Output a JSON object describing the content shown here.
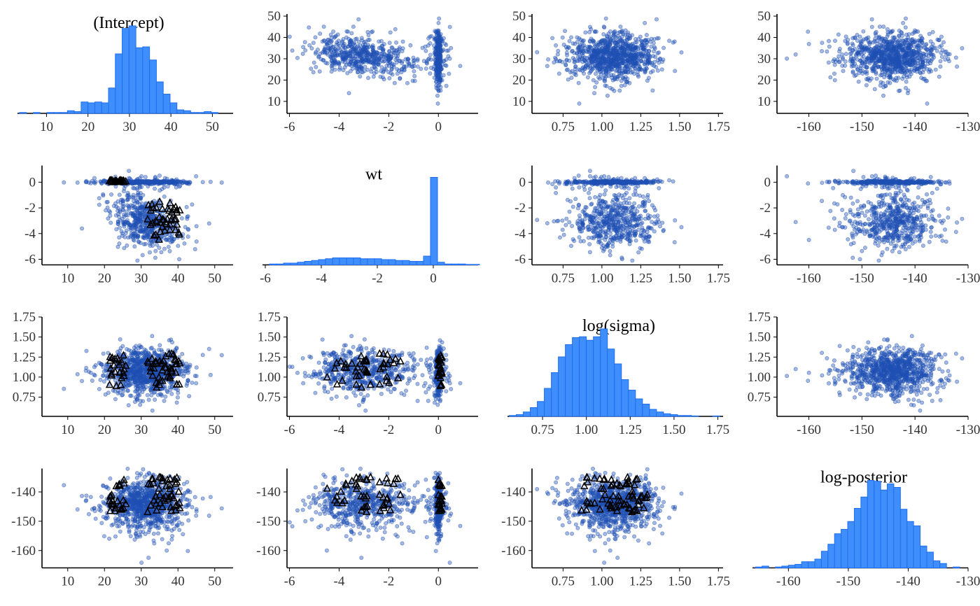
{
  "chart_data": {
    "type": "pairs",
    "variables": [
      "(Intercept)",
      "wt",
      "log(sigma)",
      "log-posterior"
    ],
    "colors": {
      "histogram": "#3f8efc",
      "histogram_edge": "#1f6ff0",
      "points": "#1f4fb4",
      "divergent": "#000000"
    },
    "ranges": {
      "(Intercept)": {
        "x": [
          3,
          55
        ],
        "y": [
          7,
          51
        ],
        "ticks": [
          10,
          20,
          30,
          40,
          50
        ]
      },
      "wt": {
        "x": [
          -6.1,
          1.6
        ],
        "y": [
          -6,
          1.3
        ],
        "ticks": [
          -6,
          -4,
          -2,
          0
        ]
      },
      "log(sigma)": {
        "x": [
          0.55,
          1.78
        ],
        "y": [
          0.58,
          1.75
        ],
        "ticks": [
          "0.75",
          "1.00",
          "1.25",
          "1.50",
          "1.75"
        ]
      },
      "log-posterior": {
        "x": [
          -166,
          -130
        ],
        "y": [
          -164,
          -132
        ],
        "ticks": [
          -160,
          -150,
          -140,
          -130
        ]
      }
    },
    "histograms": [
      {
        "variable": "(Intercept)",
        "bin_start": 3.5,
        "bin_width": 1.65,
        "relative_heights": [
          0.01,
          0,
          0.01,
          0,
          0.01,
          0.01,
          0.01,
          0.03,
          0.02,
          0.13,
          0.12,
          0.13,
          0.12,
          0.29,
          0.68,
          0.97,
          1.0,
          0.75,
          0.76,
          0.61,
          0.36,
          0.22,
          0.12,
          0.04,
          0.03,
          0.01,
          0.01,
          0.02,
          0.01,
          0
        ]
      },
      {
        "variable": "wt",
        "bin_start": -5.85,
        "bin_width": 0.25,
        "relative_heights": [
          0.01,
          0.01,
          0.02,
          0.02,
          0.03,
          0.04,
          0.05,
          0.06,
          0.07,
          0.08,
          0.08,
          0.08,
          0.08,
          0.07,
          0.07,
          0.07,
          0.06,
          0.06,
          0.05,
          0.05,
          0.04,
          0.04,
          0.1,
          1.0,
          0.03,
          0.01,
          0.01,
          0.01,
          0.005,
          0.005
        ]
      },
      {
        "variable": "log(sigma)",
        "bin_start": 0.56,
        "bin_width": 0.04,
        "relative_heights": [
          0.01,
          0.02,
          0.05,
          0.1,
          0.17,
          0.32,
          0.5,
          0.68,
          0.82,
          0.9,
          0.91,
          0.87,
          0.91,
          1.0,
          0.77,
          0.6,
          0.42,
          0.3,
          0.2,
          0.14,
          0.08,
          0.05,
          0.03,
          0.02,
          0.01,
          0.01,
          0.005,
          0,
          0,
          0.005
        ]
      },
      {
        "variable": "log-posterior",
        "bin_start": -165.5,
        "bin_width": 1.1,
        "relative_heights": [
          0.01,
          0.02,
          0,
          0.01,
          0.02,
          0.03,
          0.04,
          0.07,
          0.07,
          0.1,
          0.19,
          0.27,
          0.39,
          0.44,
          0.53,
          0.68,
          0.81,
          1.0,
          0.99,
          0.89,
          0.96,
          0.92,
          0.67,
          0.53,
          0.48,
          0.25,
          0.18,
          0.08,
          0.05,
          0,
          0.01
        ]
      }
    ],
    "scatter": "off-diagonal panels: column variable on x, row variable on y; lower panels mark divergent transitions with triangles"
  }
}
